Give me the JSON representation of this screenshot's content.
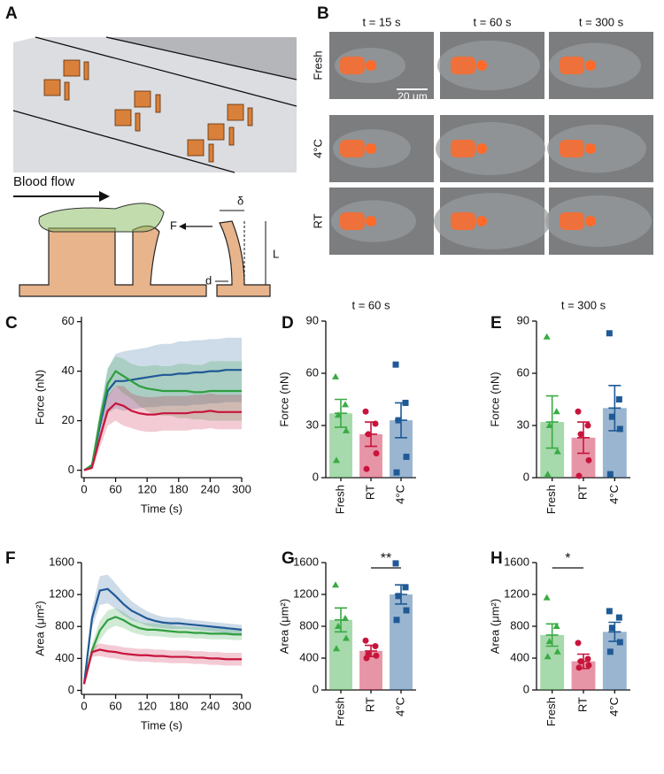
{
  "panels": [
    "A",
    "B",
    "C",
    "D",
    "E",
    "F",
    "G",
    "H"
  ],
  "diagram": {
    "flow_label": "Blood flow",
    "force": "F",
    "deflection": "δ",
    "length": "L",
    "diameter": "d"
  },
  "micrographs": {
    "times": [
      "t = 15 s",
      "t = 60 s",
      "t = 300 s"
    ],
    "conditions": [
      "Fresh",
      "4°C",
      "RT"
    ],
    "scale_bar": "20 μm"
  },
  "chart_data": [
    {
      "type": "line",
      "xlabel": "Time (s)",
      "ylabel": "Force (nN)",
      "x": [
        0,
        15,
        30,
        45,
        60,
        75,
        90,
        105,
        120,
        135,
        150,
        165,
        180,
        195,
        210,
        225,
        240,
        255,
        270,
        285,
        300
      ],
      "xlim": [
        -5,
        300
      ],
      "xticks": [
        0,
        60,
        120,
        180,
        240,
        300
      ],
      "ylim": [
        -3,
        62
      ],
      "yticks": [
        0,
        20,
        40,
        60
      ],
      "series": [
        {
          "color": "#1f5a96",
          "values": [
            0,
            2,
            18,
            32,
            36,
            36,
            36.5,
            37,
            37.5,
            38,
            38.5,
            38.5,
            39,
            39,
            39.5,
            39.5,
            40,
            40,
            40.5,
            40.5,
            40.5
          ],
          "errors": [
            0,
            1,
            5,
            9,
            11,
            12,
            12,
            12,
            12,
            12.5,
            12.5,
            12.5,
            13,
            13,
            13,
            13,
            13,
            13,
            13,
            13,
            13
          ]
        },
        {
          "color": "#2e9e3e",
          "values": [
            0,
            2,
            20,
            35,
            40,
            38,
            36,
            34,
            33,
            32.5,
            32,
            32,
            32,
            32,
            31.5,
            31.5,
            32,
            32,
            32,
            32,
            32
          ],
          "errors": [
            0,
            1,
            4,
            6,
            6,
            7,
            7,
            8,
            9,
            10,
            10,
            10,
            11,
            11,
            11,
            11,
            12,
            12,
            12,
            12,
            12
          ]
        },
        {
          "color": "#c8143c",
          "values": [
            0,
            1,
            13,
            24,
            27,
            26,
            24,
            23,
            22.5,
            22.5,
            23,
            23,
            23,
            23,
            23.5,
            23.5,
            24,
            23.5,
            23.5,
            23.5,
            23.5
          ],
          "errors": [
            0,
            1,
            4,
            6,
            7,
            8,
            7,
            7,
            7,
            7,
            7,
            7,
            7,
            7,
            7,
            7,
            7,
            7,
            7,
            7,
            7
          ]
        }
      ]
    },
    {
      "type": "bar",
      "title": "t = 60 s",
      "ylabel": "Force (nN)",
      "categories": [
        "Fresh",
        "RT",
        "4°C"
      ],
      "values": [
        37,
        25,
        33
      ],
      "errors": [
        8,
        7,
        10
      ],
      "colors": [
        "#3aaa45",
        "#c8143c",
        "#1f5a96"
      ],
      "markers": [
        "triangle",
        "circle",
        "square"
      ],
      "points": [
        [
          58,
          42,
          36,
          27,
          10
        ],
        [
          38,
          31,
          25,
          14,
          5
        ],
        [
          65,
          43,
          33,
          12,
          3
        ]
      ],
      "ylim": [
        0,
        90
      ],
      "yticks": [
        0,
        30,
        60,
        90
      ]
    },
    {
      "type": "bar",
      "title": "t = 300 s",
      "ylabel": "Force (nN)",
      "categories": [
        "Fresh",
        "RT",
        "4°C"
      ],
      "values": [
        32,
        23,
        40
      ],
      "errors": [
        15,
        9,
        13
      ],
      "colors": [
        "#3aaa45",
        "#c8143c",
        "#1f5a96"
      ],
      "markers": [
        "triangle",
        "circle",
        "square"
      ],
      "points": [
        [
          81,
          38,
          30,
          15,
          2
        ],
        [
          38,
          30,
          25,
          10,
          1
        ],
        [
          83,
          45,
          35,
          28,
          2
        ]
      ],
      "ylim": [
        0,
        90
      ],
      "yticks": [
        0,
        30,
        60,
        90
      ]
    },
    {
      "type": "line",
      "xlabel": "Time (s)",
      "ylabel": "Area (μm²)",
      "x": [
        0,
        15,
        30,
        45,
        60,
        75,
        90,
        105,
        120,
        135,
        150,
        165,
        180,
        195,
        210,
        225,
        240,
        255,
        270,
        285,
        300
      ],
      "xlim": [
        -5,
        300
      ],
      "xticks": [
        0,
        60,
        120,
        180,
        240,
        300
      ],
      "ylim": [
        -50,
        1600
      ],
      "yticks": [
        0,
        400,
        800,
        1200,
        1600
      ],
      "series": [
        {
          "color": "#1f5a96",
          "values": [
            80,
            900,
            1250,
            1270,
            1180,
            1080,
            1000,
            950,
            900,
            870,
            850,
            840,
            840,
            830,
            820,
            810,
            800,
            790,
            780,
            770,
            760
          ],
          "errors": [
            20,
            120,
            180,
            180,
            160,
            140,
            120,
            100,
            90,
            80,
            70,
            70,
            70,
            60,
            60,
            60,
            60,
            60,
            60,
            60,
            60
          ]
        },
        {
          "color": "#2e9e3e",
          "values": [
            80,
            500,
            750,
            880,
            920,
            880,
            820,
            780,
            760,
            760,
            750,
            740,
            730,
            730,
            720,
            720,
            710,
            710,
            710,
            700,
            700
          ],
          "errors": [
            20,
            80,
            120,
            120,
            110,
            100,
            90,
            80,
            80,
            80,
            80,
            80,
            70,
            70,
            70,
            70,
            70,
            70,
            70,
            70,
            70
          ]
        },
        {
          "color": "#c8143c",
          "values": [
            80,
            480,
            510,
            490,
            480,
            460,
            450,
            440,
            440,
            430,
            430,
            420,
            420,
            420,
            410,
            410,
            400,
            400,
            390,
            390,
            390
          ],
          "errors": [
            20,
            60,
            80,
            80,
            80,
            80,
            80,
            80,
            80,
            80,
            80,
            80,
            80,
            80,
            80,
            80,
            80,
            80,
            80,
            80,
            80
          ]
        }
      ]
    },
    {
      "type": "bar",
      "ylabel": "Area (μm²)",
      "categories": [
        "Fresh",
        "RT",
        "4°C"
      ],
      "values": [
        880,
        490,
        1200
      ],
      "errors": [
        150,
        70,
        120
      ],
      "colors": [
        "#3aaa45",
        "#c8143c",
        "#1f5a96"
      ],
      "markers": [
        "triangle",
        "circle",
        "square"
      ],
      "points": [
        [
          1320,
          900,
          800,
          650,
          520
        ],
        [
          620,
          550,
          450,
          430,
          400
        ],
        [
          1590,
          1290,
          1180,
          1000,
          880
        ]
      ],
      "ylim": [
        0,
        1600
      ],
      "yticks": [
        0,
        400,
        800,
        1200,
        1600
      ],
      "significance": [
        {
          "label": "**",
          "categories": [
            "RT",
            "4°C"
          ]
        }
      ]
    },
    {
      "type": "bar",
      "ylabel": "Area (μm²)",
      "categories": [
        "Fresh",
        "RT",
        "4°C"
      ],
      "values": [
        690,
        360,
        730
      ],
      "errors": [
        140,
        90,
        120
      ],
      "colors": [
        "#3aaa45",
        "#c8143c",
        "#1f5a96"
      ],
      "markers": [
        "triangle",
        "circle",
        "square"
      ],
      "points": [
        [
          1160,
          800,
          610,
          480,
          420
        ],
        [
          590,
          390,
          360,
          310,
          280
        ],
        [
          990,
          910,
          780,
          600,
          480
        ]
      ],
      "ylim": [
        0,
        1600
      ],
      "yticks": [
        0,
        400,
        800,
        1200,
        1600
      ],
      "significance": [
        {
          "label": "*",
          "categories": [
            "Fresh",
            "RT"
          ]
        }
      ]
    }
  ]
}
